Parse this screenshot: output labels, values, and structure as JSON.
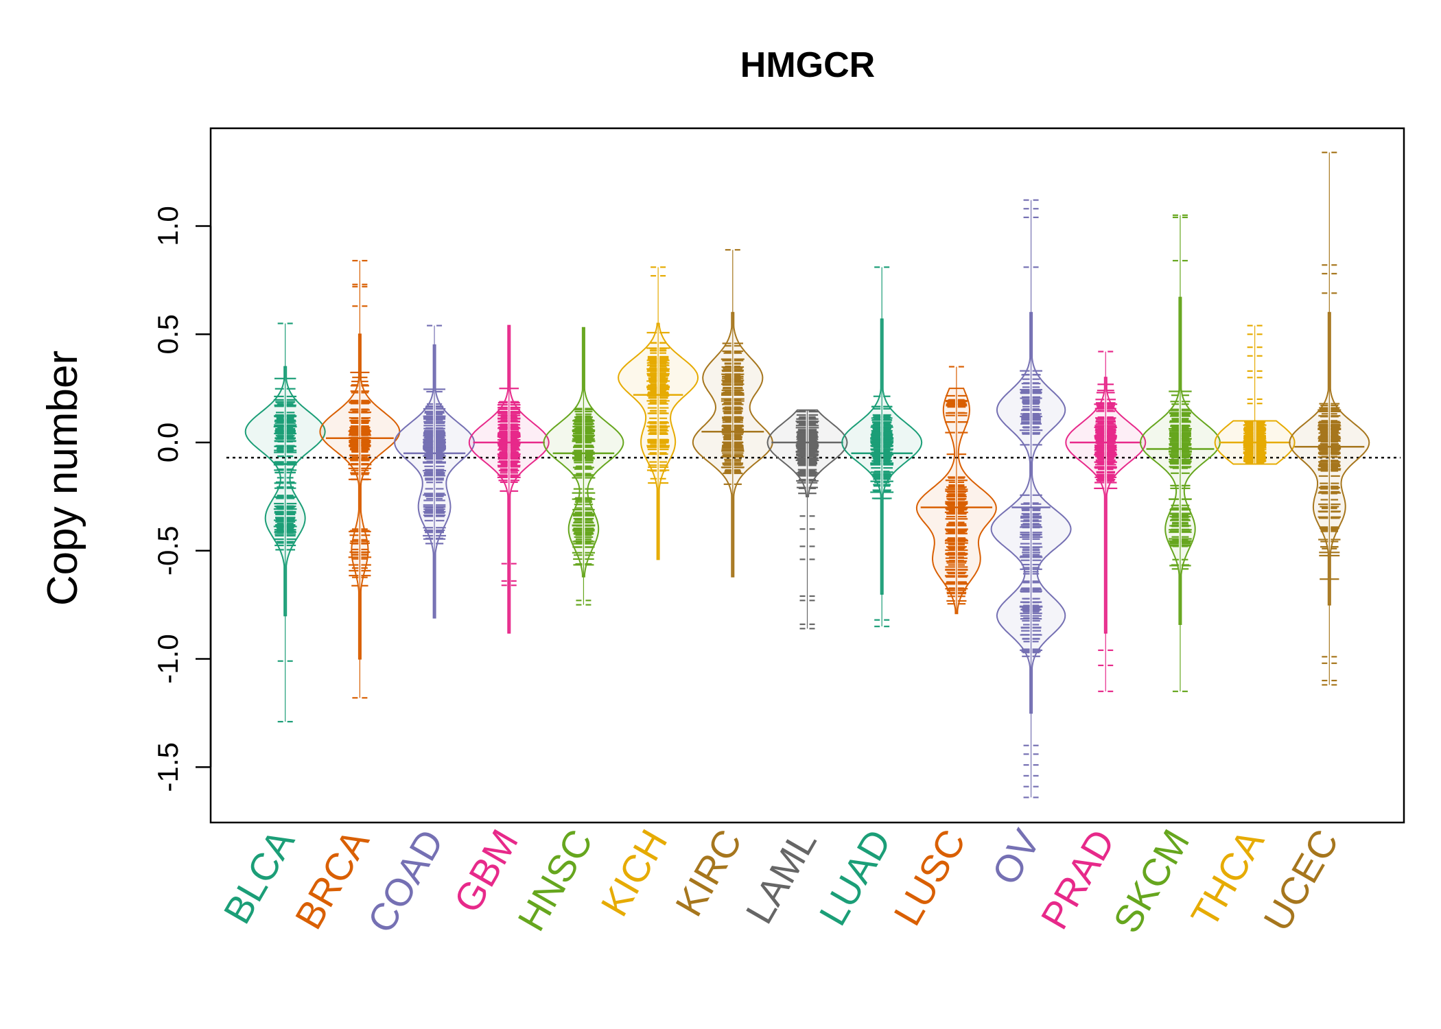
{
  "chart_data": {
    "type": "beanplot",
    "title": "HMGCR",
    "xlabel": "",
    "ylabel": "Copy number",
    "ylim": [
      -1.75,
      1.45
    ],
    "yticks": [
      1.0,
      0.5,
      0.0,
      -0.5,
      -1.0,
      -1.5
    ],
    "ytick_labels": [
      "1.0",
      "0.5",
      "0.0",
      "-0.5",
      "-1.0",
      "-1.5"
    ],
    "reference_line": -0.07,
    "categories": [
      "BLCA",
      "BRCA",
      "COAD",
      "GBM",
      "HNSC",
      "KICH",
      "KIRC",
      "LAML",
      "LUAD",
      "LUSC",
      "OV",
      "PRAD",
      "SKCM",
      "THCA",
      "UCEC"
    ],
    "colors": [
      "#1b9e77",
      "#d95f02",
      "#7570b3",
      "#e7298a",
      "#66a61e",
      "#e6ab02",
      "#a6761d",
      "#666666",
      "#1b9e77",
      "#d95f02",
      "#7570b3",
      "#e7298a",
      "#66a61e",
      "#e6ab02",
      "#a6761d"
    ],
    "series": [
      {
        "name": "BLCA",
        "min": -1.29,
        "max": 0.55,
        "outliers": [
          0.55,
          -1.01,
          -1.29
        ],
        "modes": [
          [
            0.05,
            0.6
          ],
          [
            -0.35,
            0.3
          ]
        ],
        "density_range": [
          -0.8,
          0.35
        ],
        "median": -0.1
      },
      {
        "name": "BRCA",
        "min": -1.18,
        "max": 0.84,
        "outliers": [
          0.84,
          0.73,
          0.72,
          0.63,
          -1.18
        ],
        "modes": [
          [
            0.05,
            1.2
          ],
          [
            -0.5,
            0.25
          ]
        ],
        "density_range": [
          -1.0,
          0.5
        ],
        "median": 0.02
      },
      {
        "name": "COAD",
        "min": -0.81,
        "max": 0.54,
        "outliers": [
          0.54
        ],
        "modes": [
          [
            0.0,
            1.0
          ],
          [
            -0.3,
            0.4
          ]
        ],
        "density_range": [
          -0.81,
          0.45
        ],
        "median": -0.05
      },
      {
        "name": "GBM",
        "min": -0.88,
        "max": 0.54,
        "outliers": [
          -0.56,
          -0.64,
          -0.66
        ],
        "modes": [
          [
            0.0,
            1.0
          ]
        ],
        "density_range": [
          -0.88,
          0.54
        ],
        "median": 0.0
      },
      {
        "name": "HNSC",
        "min": -0.75,
        "max": 0.53,
        "outliers": [
          -0.73,
          -0.75
        ],
        "modes": [
          [
            0.0,
            0.8
          ],
          [
            -0.4,
            0.3
          ]
        ],
        "density_range": [
          -0.62,
          0.53
        ],
        "median": -0.05
      },
      {
        "name": "KICH",
        "min": -0.54,
        "max": 0.81,
        "outliers": [
          0.81,
          0.77
        ],
        "modes": [
          [
            0.3,
            0.7
          ],
          [
            0.0,
            0.3
          ]
        ],
        "density_range": [
          -0.54,
          0.55
        ],
        "median": 0.22
      },
      {
        "name": "KIRC",
        "min": -0.62,
        "max": 0.89,
        "outliers": [
          0.89
        ],
        "modes": [
          [
            0.3,
            0.6
          ],
          [
            0.0,
            0.8
          ]
        ],
        "density_range": [
          -0.62,
          0.6
        ],
        "median": 0.05
      },
      {
        "name": "LAML",
        "min": -0.86,
        "max": 0.15,
        "outliers": [
          -0.34,
          -0.4,
          -0.48,
          -0.54,
          -0.71,
          -0.73,
          -0.84,
          -0.86
        ],
        "modes": [
          [
            0.0,
            1.3
          ]
        ],
        "density_range": [
          -0.25,
          0.15
        ],
        "median": 0.0
      },
      {
        "name": "LUAD",
        "min": -0.85,
        "max": 0.81,
        "outliers": [
          0.81,
          -0.82,
          -0.85
        ],
        "modes": [
          [
            0.0,
            0.7
          ]
        ],
        "density_range": [
          -0.7,
          0.57
        ],
        "median": -0.05
      },
      {
        "name": "LUSC",
        "min": -0.79,
        "max": 0.35,
        "outliers": [
          0.35
        ],
        "modes": [
          [
            -0.3,
            0.6
          ],
          [
            -0.55,
            0.35
          ],
          [
            0.15,
            0.2
          ]
        ],
        "density_range": [
          -0.79,
          0.25
        ],
        "median": -0.3
      },
      {
        "name": "OV",
        "min": -1.64,
        "max": 1.12,
        "outliers": [
          1.12,
          1.08,
          1.04,
          0.81,
          -1.4,
          -1.44,
          -1.49,
          -1.54,
          -1.59,
          -1.64
        ],
        "modes": [
          [
            -0.4,
            0.35
          ],
          [
            0.15,
            0.3
          ],
          [
            -0.8,
            0.3
          ]
        ],
        "density_range": [
          -1.25,
          0.6
        ],
        "median": -0.3
      },
      {
        "name": "PRAD",
        "min": -1.15,
        "max": 0.42,
        "outliers": [
          0.42,
          -0.96,
          -1.03,
          -1.15
        ],
        "modes": [
          [
            0.0,
            1.2
          ]
        ],
        "density_range": [
          -0.88,
          0.3
        ],
        "median": 0.0
      },
      {
        "name": "SKCM",
        "min": -1.15,
        "max": 1.05,
        "outliers": [
          1.05,
          1.04,
          0.84,
          -1.15
        ],
        "modes": [
          [
            0.0,
            0.8
          ],
          [
            -0.4,
            0.3
          ]
        ],
        "density_range": [
          -0.84,
          0.67
        ],
        "median": -0.03
      },
      {
        "name": "THCA",
        "min": -0.1,
        "max": 0.54,
        "outliers": [
          0.54,
          0.5,
          0.44,
          0.4,
          0.33,
          0.3,
          0.2,
          0.18
        ],
        "modes": [
          [
            0.0,
            1.5
          ]
        ],
        "density_range": [
          -0.1,
          0.1
        ],
        "median": 0.0
      },
      {
        "name": "UCEC",
        "min": -1.12,
        "max": 1.34,
        "outliers": [
          1.34,
          0.82,
          0.78,
          0.69,
          -0.99,
          -1.02,
          -1.1,
          -1.12
        ],
        "modes": [
          [
            0.0,
            1.0
          ],
          [
            -0.3,
            0.4
          ]
        ],
        "density_range": [
          -0.75,
          0.6
        ],
        "median": -0.02
      }
    ]
  }
}
